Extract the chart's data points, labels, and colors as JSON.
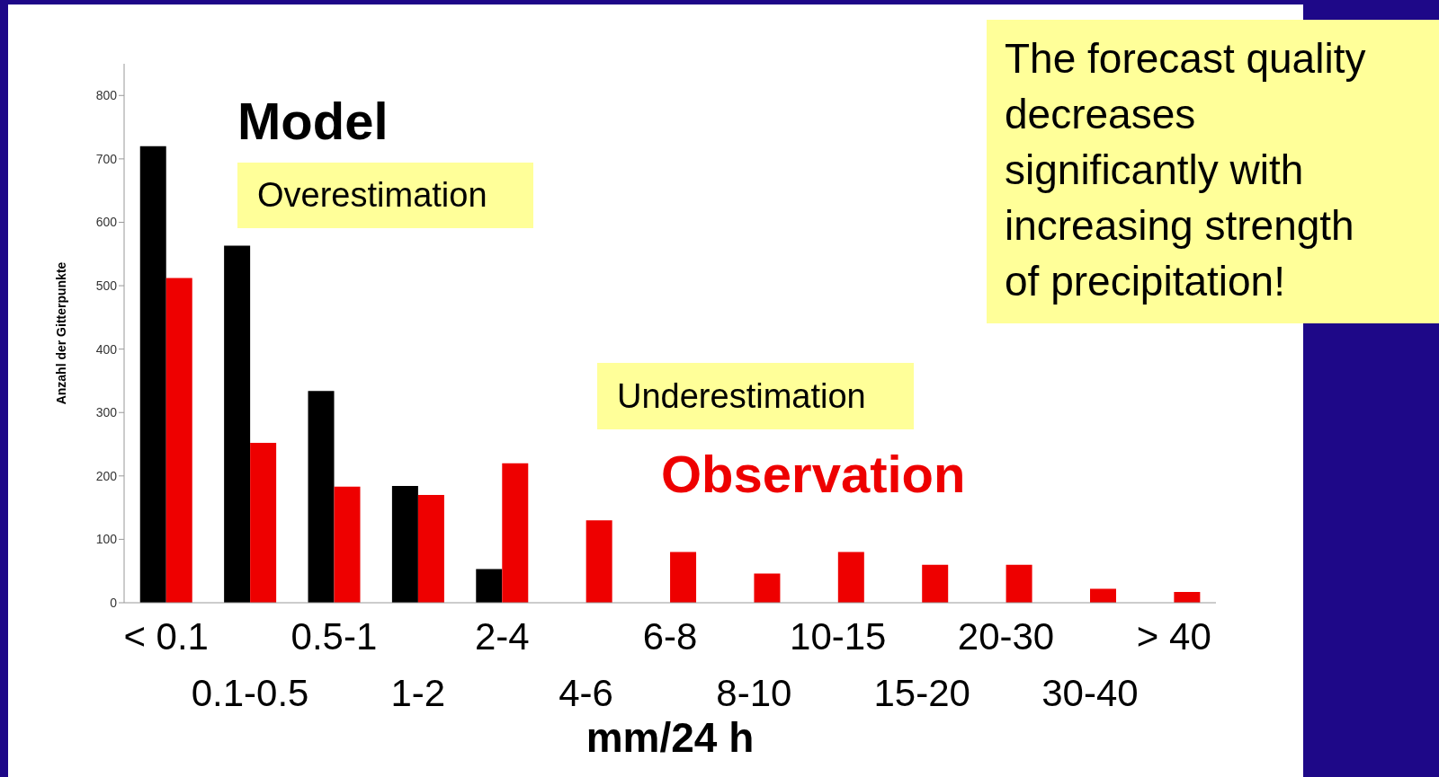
{
  "chart_data": {
    "type": "bar",
    "xlabel": "mm/24 h",
    "ylabel": "Anzahl der Gitterpunkte",
    "categories": [
      "< 0.1",
      "0.1-0.5",
      "0.5-1",
      "1-2",
      "2-4",
      "4-6",
      "6-8",
      "8-10",
      "10-15",
      "15-20",
      "20-30",
      "30-40",
      "> 40"
    ],
    "series": [
      {
        "name": "Model",
        "color": "#000000",
        "values": [
          720,
          563,
          334,
          184,
          53,
          0,
          0,
          0,
          0,
          0,
          0,
          0,
          0
        ]
      },
      {
        "name": "Observation",
        "color": "#ee0000",
        "values": [
          512,
          252,
          183,
          170,
          220,
          130,
          80,
          46,
          80,
          60,
          60,
          22,
          17
        ]
      }
    ],
    "ylim": [
      0,
      850
    ],
    "yticks": [
      0,
      100,
      200,
      300,
      400,
      500,
      600,
      700,
      800
    ],
    "annotations": [
      "Overestimation",
      "Underestimation",
      "The forecast quality decreases significantly with increasing strength of precipitation!"
    ]
  }
}
